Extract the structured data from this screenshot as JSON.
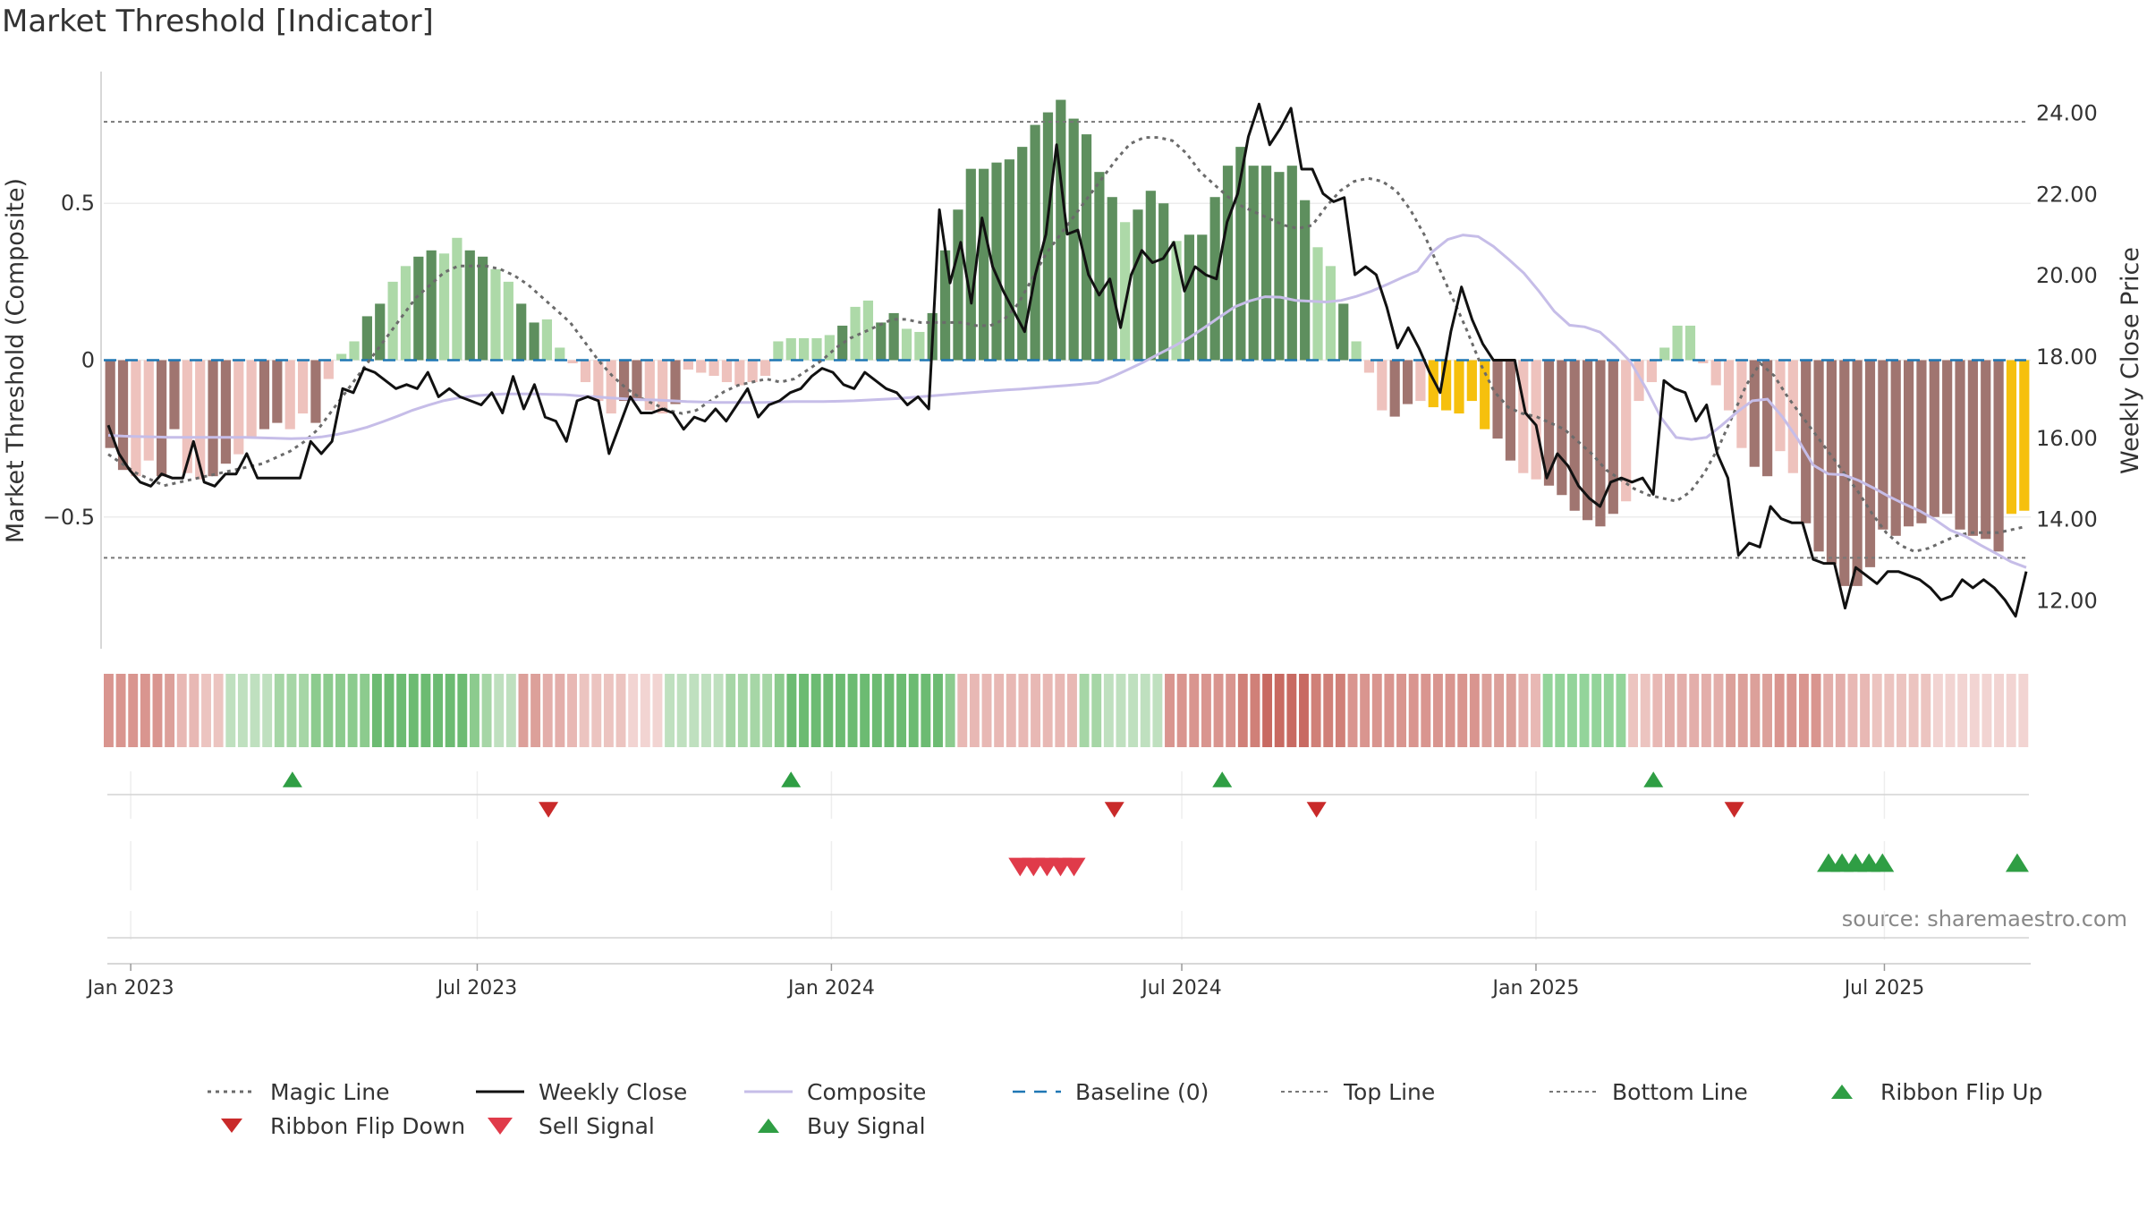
{
  "chart_data": {
    "type": "bar",
    "title": "Market Threshold [Indicator]",
    "ylabel_left": "Market Threshold (Composite)",
    "ylabel_right": "Weekly Close Price",
    "source": "source: sharemaestro.com",
    "x_range": [
      "2022-12-19",
      "2025-09-15"
    ],
    "x_ticks": [
      {
        "date": "2023-01-02",
        "label": "Jan 2023"
      },
      {
        "date": "2023-07-01",
        "label": "Jul 2023"
      },
      {
        "date": "2024-01-01",
        "label": "Jan 2024"
      },
      {
        "date": "2024-07-01",
        "label": "Jul 2024"
      },
      {
        "date": "2025-01-01",
        "label": "Jan 2025"
      },
      {
        "date": "2025-07-01",
        "label": "Jul 2025"
      }
    ],
    "y_left": {
      "min": -0.92,
      "max": 0.92,
      "ticks": [
        0.5,
        0,
        -0.5
      ],
      "tick_labels": [
        "0.5",
        "0",
        "−0.5"
      ]
    },
    "y_right": {
      "min": 10.8,
      "max": 25.0,
      "ticks": [
        24,
        22,
        20,
        18,
        16,
        14,
        12
      ],
      "tick_labels": [
        "24.00",
        "22.00",
        "20.00",
        "18.00",
        "16.00",
        "14.00",
        "12.00"
      ]
    },
    "top_line": 0.76,
    "bottom_line": -0.63,
    "bars": [
      -0.28,
      -0.35,
      -0.37,
      -0.32,
      -0.37,
      -0.22,
      -0.36,
      -0.38,
      -0.37,
      -0.33,
      -0.3,
      -0.25,
      -0.22,
      -0.2,
      -0.22,
      -0.17,
      -0.2,
      -0.06,
      0.02,
      0.06,
      0.14,
      0.18,
      0.25,
      0.3,
      0.33,
      0.35,
      0.34,
      0.39,
      0.35,
      0.33,
      0.29,
      0.25,
      0.18,
      0.12,
      0.13,
      0.04,
      -0.01,
      -0.07,
      -0.13,
      -0.17,
      -0.13,
      -0.13,
      -0.16,
      -0.17,
      -0.14,
      -0.03,
      -0.04,
      -0.05,
      -0.07,
      -0.08,
      -0.07,
      -0.05,
      0.06,
      0.07,
      0.07,
      0.07,
      0.08,
      0.11,
      0.17,
      0.19,
      0.12,
      0.15,
      0.1,
      0.09,
      0.15,
      0.35,
      0.48,
      0.61,
      0.61,
      0.63,
      0.64,
      0.68,
      0.75,
      0.79,
      0.83,
      0.77,
      0.72,
      0.6,
      0.52,
      0.44,
      0.48,
      0.54,
      0.5,
      0.38,
      0.4,
      0.4,
      0.52,
      0.62,
      0.68,
      0.62,
      0.62,
      0.6,
      0.62,
      0.51,
      0.36,
      0.3,
      0.18,
      0.06,
      -0.04,
      -0.16,
      -0.18,
      -0.14,
      -0.13,
      -0.15,
      -0.16,
      -0.17,
      -0.13,
      -0.22,
      -0.25,
      -0.32,
      -0.36,
      -0.38,
      -0.4,
      -0.43,
      -0.48,
      -0.51,
      -0.53,
      -0.49,
      -0.45,
      -0.13,
      -0.07,
      0.04,
      0.11,
      0.11,
      -0.01,
      -0.08,
      -0.16,
      -0.28,
      -0.34,
      -0.37,
      -0.29,
      -0.36,
      -0.52,
      -0.61,
      -0.65,
      -0.72,
      -0.72,
      -0.66,
      -0.54,
      -0.56,
      -0.53,
      -0.52,
      -0.5,
      -0.49,
      -0.54,
      -0.56,
      -0.57,
      -0.61,
      -0.49,
      -0.48
    ],
    "magic_line": [
      -0.3,
      -0.33,
      -0.36,
      -0.38,
      -0.4,
      -0.39,
      -0.38,
      -0.37,
      -0.36,
      -0.35,
      -0.34,
      -0.33,
      -0.31,
      -0.29,
      -0.26,
      -0.22,
      -0.16,
      -0.1,
      -0.04,
      0.02,
      0.08,
      0.14,
      0.2,
      0.24,
      0.28,
      0.3,
      0.3,
      0.3,
      0.29,
      0.27,
      0.24,
      0.2,
      0.16,
      0.12,
      0.06,
      0.0,
      -0.05,
      -0.09,
      -0.12,
      -0.14,
      -0.16,
      -0.17,
      -0.16,
      -0.13,
      -0.1,
      -0.08,
      -0.07,
      -0.06,
      -0.07,
      -0.06,
      -0.03,
      0.0,
      0.04,
      0.07,
      0.09,
      0.11,
      0.13,
      0.13,
      0.12,
      0.12,
      0.12,
      0.12,
      0.11,
      0.11,
      0.13,
      0.18,
      0.26,
      0.34,
      0.4,
      0.46,
      0.52,
      0.58,
      0.64,
      0.69,
      0.71,
      0.71,
      0.7,
      0.66,
      0.6,
      0.56,
      0.52,
      0.49,
      0.47,
      0.45,
      0.43,
      0.42,
      0.43,
      0.49,
      0.54,
      0.57,
      0.58,
      0.57,
      0.54,
      0.48,
      0.4,
      0.3,
      0.2,
      0.1,
      -0.01,
      -0.1,
      -0.15,
      -0.17,
      -0.18,
      -0.2,
      -0.22,
      -0.26,
      -0.3,
      -0.35,
      -0.38,
      -0.41,
      -0.43,
      -0.44,
      -0.45,
      -0.42,
      -0.36,
      -0.28,
      -0.18,
      -0.08,
      -0.01,
      -0.05,
      -0.12,
      -0.18,
      -0.24,
      -0.3,
      -0.36,
      -0.42,
      -0.49,
      -0.55,
      -0.59,
      -0.61,
      -0.6,
      -0.58,
      -0.56,
      -0.55,
      -0.55,
      -0.55,
      -0.54,
      -0.53
    ],
    "weekly_close": [
      16.3,
      15.6,
      15.2,
      14.9,
      14.8,
      15.1,
      15.0,
      15.0,
      15.9,
      14.9,
      14.8,
      15.1,
      15.1,
      15.6,
      15.0,
      15.0,
      15.0,
      15.0,
      15.0,
      15.9,
      15.6,
      15.9,
      17.2,
      17.1,
      17.7,
      17.6,
      17.4,
      17.2,
      17.3,
      17.2,
      17.6,
      17.0,
      17.2,
      17.0,
      16.9,
      16.8,
      17.1,
      16.6,
      17.5,
      16.7,
      17.3,
      16.5,
      16.4,
      15.9,
      16.9,
      17.0,
      16.9,
      15.6,
      16.3,
      17.0,
      16.6,
      16.6,
      16.7,
      16.6,
      16.2,
      16.5,
      16.4,
      16.7,
      16.4,
      16.8,
      17.2,
      16.5,
      16.8,
      16.9,
      17.1,
      17.2,
      17.5,
      17.7,
      17.6,
      17.3,
      17.2,
      17.6,
      17.4,
      17.2,
      17.1,
      16.8,
      17.0,
      16.7,
      21.6,
      19.8,
      20.8,
      19.3,
      21.4,
      20.2,
      19.6,
      19.1,
      18.6,
      20.0,
      21.0,
      23.2,
      21.0,
      21.1,
      20.0,
      19.5,
      19.9,
      18.7,
      20.0,
      20.6,
      20.3,
      20.4,
      20.8,
      19.6,
      20.2,
      20.0,
      19.9,
      21.3,
      22.0,
      23.4,
      24.2,
      23.2,
      23.6,
      24.1,
      22.6,
      22.6,
      22.0,
      21.8,
      21.9,
      20.0,
      20.2,
      20.0,
      19.2,
      18.2,
      18.7,
      18.2,
      17.6,
      17.1,
      18.6,
      19.7,
      18.9,
      18.3,
      17.9,
      17.9,
      17.9,
      16.6,
      16.3,
      15.0,
      15.6,
      15.3,
      14.8,
      14.5,
      14.3,
      14.9,
      15.0,
      14.9,
      15.0,
      14.6,
      17.4,
      17.2,
      17.1,
      16.4,
      16.8,
      15.6,
      15.0,
      13.1,
      13.4,
      13.3,
      14.3,
      14.0,
      13.9,
      13.9,
      13.0,
      12.9,
      12.9,
      11.8,
      12.8,
      12.6,
      12.4,
      12.7,
      12.7,
      12.6,
      12.5,
      12.3,
      12.0,
      12.1,
      12.5,
      12.3,
      12.5,
      12.3,
      12.0,
      11.6,
      12.7
    ],
    "composite": [
      16.05,
      16.03,
      16.02,
      16.01,
      16.0,
      16.0,
      16.0,
      16.0,
      16.0,
      16.0,
      15.99,
      15.98,
      15.97,
      15.98,
      16.01,
      16.07,
      16.15,
      16.25,
      16.38,
      16.52,
      16.67,
      16.79,
      16.9,
      16.97,
      17.02,
      17.05,
      17.07,
      17.07,
      17.07,
      17.06,
      17.05,
      17.02,
      17.0,
      16.97,
      16.95,
      16.93,
      16.92,
      16.9,
      16.88,
      16.87,
      16.86,
      16.86,
      16.86,
      16.86,
      16.87,
      16.88,
      16.88,
      16.88,
      16.89,
      16.9,
      16.92,
      16.94,
      16.96,
      16.99,
      17.02,
      17.05,
      17.08,
      17.11,
      17.14,
      17.17,
      17.19,
      17.22,
      17.25,
      17.28,
      17.31,
      17.35,
      17.5,
      17.67,
      17.85,
      18.05,
      18.24,
      18.45,
      18.7,
      18.96,
      19.21,
      19.36,
      19.46,
      19.45,
      19.37,
      19.35,
      19.33,
      19.37,
      19.47,
      19.6,
      19.76,
      19.93,
      20.09,
      20.57,
      20.87,
      20.98,
      20.94,
      20.7,
      20.38,
      20.04,
      19.59,
      19.1,
      18.76,
      18.72,
      18.59,
      18.25,
      17.86,
      17.22,
      16.49,
      16.0,
      15.95,
      16.0,
      16.3,
      16.62,
      16.9,
      16.94,
      16.5,
      15.95,
      15.32,
      15.1,
      15.08,
      14.94,
      14.75,
      14.54,
      14.36,
      14.19,
      13.98,
      13.72,
      13.57,
      13.35,
      13.15,
      12.94,
      12.8
    ],
    "composite_start": "2022-12-19",
    "composite_end": "2025-09-15",
    "ribbon_colors": [
      "#d9958f",
      "#d9958f",
      "#d9958f",
      "#d9958f",
      "#d9958f",
      "#dca09a",
      "#e8b8b4",
      "#e8b8b4",
      "#ecc4c0",
      "#ecc4c0",
      "#bfe0bf",
      "#bfe0bf",
      "#bfe0bf",
      "#bfe0bf",
      "#a6d6a6",
      "#a6d6a6",
      "#a6d6a6",
      "#8ccb8e",
      "#8ccb8e",
      "#8ccb8e",
      "#8ccb8e",
      "#8ccb8e",
      "#6cbb72",
      "#6cbb72",
      "#6cbb72",
      "#6cbb72",
      "#6cbb72",
      "#6cbb72",
      "#6cbb72",
      "#6cbb72",
      "#8ccb8e",
      "#a6d6a6",
      "#bfe0bf",
      "#bfe0bf",
      "#dca09a",
      "#dca09a",
      "#e3aeaa",
      "#e3aeaa",
      "#e8b8b4",
      "#ecc4c0",
      "#ecc4c0",
      "#ecc4c0",
      "#ecc4c0",
      "#f2d4d2",
      "#f2d4d2",
      "#f2d4d2",
      "#bfe0bf",
      "#bfe0bf",
      "#bfe0bf",
      "#bfe0bf",
      "#bfe0bf",
      "#a6d6a6",
      "#a6d6a6",
      "#a6d6a6",
      "#a6d6a6",
      "#8ccb8e",
      "#6cbb72",
      "#6cbb72",
      "#6cbb72",
      "#6cbb72",
      "#6cbb72",
      "#6cbb72",
      "#6cbb72",
      "#6cbb72",
      "#6cbb72",
      "#6cbb72",
      "#6cbb72",
      "#6cbb72",
      "#6cbb72",
      "#8ccb8e",
      "#e8b8b4",
      "#e8b8b4",
      "#e8b8b4",
      "#e8b8b4",
      "#e8b8b4",
      "#e8b8b4",
      "#e8b8b4",
      "#e8b8b4",
      "#e8b8b4",
      "#e8b8b4",
      "#a6d6a6",
      "#a6d6a6",
      "#bfe0bf",
      "#bfe0bf",
      "#bfe0bf",
      "#bfe0bf",
      "#bfe0bf",
      "#d9958f",
      "#d9958f",
      "#d9958f",
      "#d9958f",
      "#d9958f",
      "#d9958f",
      "#d08078",
      "#d08078",
      "#c86a62",
      "#c86a62",
      "#c86a62",
      "#c86a62",
      "#d08078",
      "#d08078",
      "#d08078",
      "#d9958f",
      "#d9958f",
      "#d9958f",
      "#d9958f",
      "#d9958f",
      "#d9958f",
      "#d9958f",
      "#d9958f",
      "#d9958f",
      "#d9958f",
      "#d9958f",
      "#dca09a",
      "#dca09a",
      "#dca09a",
      "#e3aeaa",
      "#e8b8b4",
      "#93d49a",
      "#93d49a",
      "#93d49a",
      "#93d49a",
      "#93d49a",
      "#93d49a",
      "#93d49a",
      "#ecc4c0",
      "#ecc4c0",
      "#e8b8b4",
      "#e3aeaa",
      "#e3aeaa",
      "#e3aeaa",
      "#e3aeaa",
      "#e3aeaa",
      "#dca09a",
      "#dca09a",
      "#dca09a",
      "#dca09a",
      "#d9958f",
      "#d9958f",
      "#d9958f",
      "#d9958f",
      "#e3aeaa",
      "#e3aeaa",
      "#e8b8b4",
      "#e8b8b4",
      "#ecc4c0",
      "#ecc4c0",
      "#ecc4c0",
      "#ecc4c0",
      "#ecc4c0",
      "#f2d4d2",
      "#f2d4d2",
      "#f2d4d2",
      "#f2d4d2",
      "#f2d4d2",
      "#f2d4d2",
      "#f2d4d2",
      "#f2d4d2"
    ],
    "ribbon_flip_up": [
      "2023-03-27",
      "2023-12-11",
      "2024-07-22",
      "2025-03-03"
    ],
    "ribbon_flip_down": [
      "2023-08-07",
      "2024-05-27",
      "2024-09-09",
      "2025-04-14"
    ],
    "sell_signals": [
      "2024-04-08",
      "2024-04-15",
      "2024-04-22",
      "2024-04-29",
      "2024-05-06"
    ],
    "buy_signals": [
      "2025-06-02",
      "2025-06-09",
      "2025-06-16",
      "2025-06-23",
      "2025-06-30",
      "2025-09-08"
    ],
    "colors": {
      "up_dark": "#5e8f5e",
      "up_light": "#add9a8",
      "down_dark": "#a07570",
      "down_light": "#eec2bd",
      "highlight": "#f6c00d",
      "weekly_close": "#111111",
      "composite": "#c6bde8",
      "magic_line": "#6b6b6b",
      "baseline": "#1f77b4",
      "ref_line": "#777777",
      "flip_up": "#2f9e44",
      "flip_down": "#c92a2a",
      "sell": "#e03b4a",
      "buy": "#2f9e44"
    },
    "legend": [
      {
        "label": "Magic Line",
        "style": "dotted-gray"
      },
      {
        "label": "Weekly Close",
        "style": "solid-black"
      },
      {
        "label": "Composite",
        "style": "solid-lavender"
      },
      {
        "label": "Baseline (0)",
        "style": "dashed-blue"
      },
      {
        "label": "Top Line",
        "style": "dashed-gray"
      },
      {
        "label": "Bottom Line",
        "style": "dashed-gray"
      },
      {
        "label": "Ribbon Flip Up",
        "style": "triangle-up-green"
      },
      {
        "label": "Ribbon Flip Down",
        "style": "triangle-down-red"
      },
      {
        "label": "Sell Signal",
        "style": "triangle-down-lightred"
      },
      {
        "label": "Buy Signal",
        "style": "triangle-up-green"
      }
    ]
  }
}
